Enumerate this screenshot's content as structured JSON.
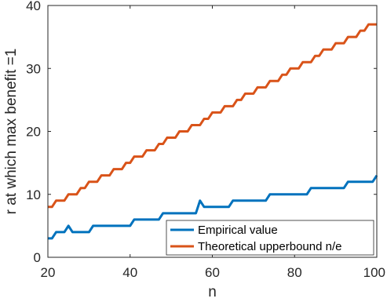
{
  "chart_data": {
    "type": "line",
    "xlabel": "n",
    "ylabel": "r at which max benefit =1",
    "xlim": [
      20,
      100
    ],
    "ylim": [
      0,
      40
    ],
    "xticks": [
      20,
      40,
      60,
      80,
      100
    ],
    "yticks": [
      0,
      10,
      20,
      30,
      40
    ],
    "grid": false,
    "legend_position": "bottom-right",
    "x": [
      20,
      21,
      22,
      23,
      24,
      25,
      26,
      27,
      28,
      29,
      30,
      31,
      32,
      33,
      34,
      35,
      36,
      37,
      38,
      39,
      40,
      41,
      42,
      43,
      44,
      45,
      46,
      47,
      48,
      49,
      50,
      51,
      52,
      53,
      54,
      55,
      56,
      57,
      58,
      59,
      60,
      61,
      62,
      63,
      64,
      65,
      66,
      67,
      68,
      69,
      70,
      71,
      72,
      73,
      74,
      75,
      76,
      77,
      78,
      79,
      80,
      81,
      82,
      83,
      84,
      85,
      86,
      87,
      88,
      89,
      90,
      91,
      92,
      93,
      94,
      95,
      96,
      97,
      98,
      99,
      100
    ],
    "series": [
      {
        "name": "Empirical value",
        "color": "#0072BD",
        "values": [
          3,
          3,
          4,
          4,
          4,
          5,
          4,
          4,
          4,
          4,
          4,
          5,
          5,
          5,
          5,
          5,
          5,
          5,
          5,
          5,
          5,
          6,
          6,
          6,
          6,
          6,
          6,
          6,
          7,
          7,
          7,
          7,
          7,
          7,
          7,
          7,
          7,
          9,
          8,
          8,
          8,
          8,
          8,
          8,
          8,
          9,
          9,
          9,
          9,
          9,
          9,
          9,
          9,
          9,
          10,
          10,
          10,
          10,
          10,
          10,
          10,
          10,
          10,
          10,
          11,
          11,
          11,
          11,
          11,
          11,
          11,
          11,
          11,
          12,
          12,
          12,
          12,
          12,
          12,
          12,
          13
        ]
      },
      {
        "name": "Theoretical upperbound n/e",
        "color": "#D95319",
        "values": [
          8,
          8,
          9,
          9,
          9,
          10,
          10,
          10,
          11,
          11,
          12,
          12,
          12,
          13,
          13,
          13,
          14,
          14,
          14,
          15,
          15,
          16,
          16,
          16,
          17,
          17,
          17,
          18,
          18,
          19,
          19,
          19,
          20,
          20,
          20,
          21,
          21,
          21,
          22,
          22,
          23,
          23,
          23,
          24,
          24,
          24,
          25,
          25,
          26,
          26,
          26,
          27,
          27,
          27,
          28,
          28,
          28,
          29,
          29,
          30,
          30,
          30,
          31,
          31,
          31,
          32,
          32,
          33,
          33,
          33,
          34,
          34,
          34,
          35,
          35,
          35,
          36,
          36,
          37,
          37,
          37
        ]
      }
    ]
  }
}
